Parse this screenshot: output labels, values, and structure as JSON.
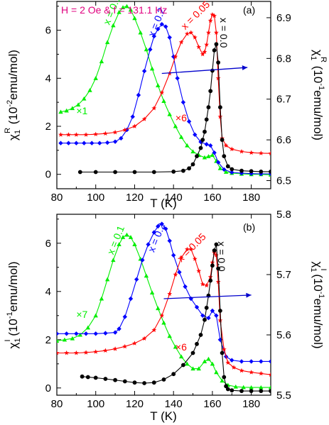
{
  "chart_data": [
    {
      "type": "scatter",
      "panel_label": "(a)",
      "annotation": "H = 2 Oe & f = 131.1 Hz",
      "xlabel": "T (K)",
      "xlim": [
        80,
        190
      ],
      "xticks": [
        "80",
        "100",
        "120",
        "140",
        "160",
        "180"
      ],
      "ylabel_left": "χ1R (10-2emu/mol)",
      "ylim_left": [
        -0.6,
        7.2
      ],
      "yticks_left": [
        "0",
        "2",
        "4",
        "6"
      ],
      "ylabel_right": "χ1R (10-1emu/mol)",
      "ylim_right": [
        6.48,
        6.94
      ],
      "yticks_right": [
        "6.5",
        "6.6",
        "6.7",
        "6.8",
        "6.9"
      ],
      "multiplier_labels": [
        {
          "text": "×1",
          "color": "#00ee00",
          "x": 90,
          "y": 2.5
        },
        {
          "text": "×6",
          "color": "#ff0000",
          "x": 141,
          "y": 2.2
        }
      ],
      "right_axis_arrow": {
        "from": [
          134,
          4.2
        ],
        "to": [
          178,
          4.45
        ],
        "color": "#0000cc"
      },
      "series": [
        {
          "name": "x = 0.1",
          "color": "#00ee00",
          "marker": "triangle",
          "axis": "left",
          "label_pos": [
            107,
            6.2
          ],
          "label_rotate": -68,
          "x": [
            82,
            85,
            88,
            91,
            94,
            97,
            100,
            103,
            106,
            109,
            112,
            114,
            116,
            118,
            120,
            123,
            126,
            129,
            132,
            135,
            138,
            141,
            144,
            147,
            150,
            153,
            156,
            158,
            160,
            162,
            164,
            167,
            170,
            175,
            180,
            185,
            190
          ],
          "y": [
            2.6,
            2.65,
            2.75,
            2.9,
            3.15,
            3.5,
            4.0,
            4.7,
            5.5,
            6.2,
            6.75,
            6.95,
            7.0,
            6.85,
            6.5,
            5.9,
            5.2,
            4.4,
            3.7,
            3.05,
            2.5,
            2.0,
            1.55,
            1.2,
            0.95,
            0.8,
            0.7,
            0.75,
            0.8,
            0.55,
            0.25,
            0.1,
            0.05,
            0.02,
            0.0,
            0.0,
            -0.02
          ]
        },
        {
          "name": "x = 0.2",
          "color": "#0000ff",
          "marker": "diamond",
          "axis": "left",
          "label_pos": [
            130,
            5.7
          ],
          "label_rotate": -68,
          "x": [
            82,
            86,
            90,
            94,
            98,
            102,
            106,
            110,
            113,
            116,
            119,
            122,
            125,
            128,
            130,
            132,
            134,
            136,
            138,
            140,
            142,
            145,
            148,
            151,
            154,
            157,
            159,
            161,
            163,
            166,
            170,
            175,
            180,
            185,
            190
          ],
          "y": [
            1.3,
            1.3,
            1.3,
            1.3,
            1.3,
            1.3,
            1.32,
            1.36,
            1.5,
            1.85,
            2.4,
            3.3,
            4.3,
            5.2,
            5.75,
            6.05,
            6.25,
            6.15,
            5.7,
            4.9,
            4.0,
            3.0,
            2.2,
            1.65,
            1.35,
            1.25,
            1.2,
            0.9,
            0.5,
            0.2,
            0.08,
            0.05,
            0.03,
            0.02,
            0.02
          ]
        },
        {
          "name": "x = 0.05",
          "color": "#ff0000",
          "marker": "star",
          "axis": "left",
          "label_pos": [
            146,
            6.0
          ],
          "label_rotate": -45,
          "x": [
            82,
            86,
            90,
            95,
            100,
            105,
            110,
            115,
            120,
            125,
            130,
            134,
            138,
            141,
            144,
            147,
            149,
            151,
            153,
            155,
            156,
            157,
            158,
            159,
            160,
            161,
            162,
            163,
            164,
            165,
            167,
            170,
            175,
            180,
            185,
            190
          ],
          "y": [
            1.65,
            1.65,
            1.65,
            1.65,
            1.67,
            1.7,
            1.75,
            1.85,
            2.0,
            2.3,
            2.75,
            3.4,
            4.2,
            4.9,
            5.5,
            5.85,
            5.9,
            5.7,
            5.3,
            5.0,
            5.1,
            5.4,
            5.9,
            6.4,
            6.65,
            6.6,
            5.9,
            4.0,
            2.4,
            1.5,
            1.2,
            1.05,
            0.95,
            0.9,
            0.88,
            0.87
          ]
        },
        {
          "name": "x = 0.0",
          "color": "#000000",
          "marker": "circle",
          "axis": "right",
          "label_pos": [
            164,
            6.9
          ],
          "label_rotate": 90,
          "x": [
            92,
            100,
            110,
            120,
            130,
            140,
            145,
            148,
            150,
            152,
            154,
            155,
            156,
            157,
            158,
            159,
            160,
            161,
            162,
            163,
            164,
            165,
            166,
            168,
            170,
            175,
            180,
            185,
            190
          ],
          "y": [
            6.521,
            6.521,
            6.521,
            6.521,
            6.521,
            6.522,
            6.524,
            6.53,
            6.54,
            6.56,
            6.58,
            6.6,
            6.62,
            6.65,
            6.68,
            6.72,
            6.77,
            6.82,
            6.835,
            6.79,
            6.68,
            6.6,
            6.56,
            6.535,
            6.528,
            6.524,
            6.523,
            6.522,
            6.522
          ]
        }
      ]
    },
    {
      "type": "scatter",
      "panel_label": "(b)",
      "xlabel": "T (K)",
      "xlim": [
        80,
        190
      ],
      "xticks": [
        "80",
        "100",
        "120",
        "140",
        "160",
        "180"
      ],
      "ylabel_left": "χ1I (10-1emu/mol)",
      "ylim_left": [
        -0.3,
        7.2
      ],
      "yticks_left": [
        "0",
        "2",
        "4",
        "6"
      ],
      "ylabel_right": "χ1I (10-1emu/mol)",
      "ylim_right": [
        5.5,
        5.8
      ],
      "yticks_right": [
        "5.5",
        "5.6",
        "5.7",
        "5.8"
      ],
      "multiplier_labels": [
        {
          "text": "×7",
          "color": "#00ee00",
          "x": 90,
          "y": 2.9
        },
        {
          "text": "×6",
          "color": "#ff0000",
          "x": 141,
          "y": 1.55
        }
      ],
      "right_axis_arrow": {
        "from": [
          135,
          3.7
        ],
        "to": [
          180,
          3.85
        ],
        "color": "#0000cc"
      },
      "series": [
        {
          "name": "x = 0.1",
          "color": "#00ee00",
          "marker": "triangle",
          "axis": "left",
          "label_pos": [
            109,
            5.5
          ],
          "label_rotate": -68,
          "x": [
            80,
            84,
            88,
            92,
            96,
            100,
            103,
            106,
            109,
            112,
            114,
            116,
            118,
            120,
            123,
            126,
            129,
            132,
            135,
            138,
            141,
            144,
            147,
            150,
            153,
            156,
            158,
            160,
            162,
            165,
            168,
            172,
            176,
            180,
            185,
            190
          ],
          "y": [
            1.95,
            2.0,
            2.05,
            2.2,
            2.5,
            3.0,
            3.7,
            4.5,
            5.3,
            5.95,
            6.25,
            6.35,
            6.25,
            5.95,
            5.35,
            4.65,
            3.95,
            3.3,
            2.7,
            2.15,
            1.7,
            1.3,
            1.0,
            0.8,
            0.8,
            1.1,
            1.2,
            1.0,
            0.65,
            0.3,
            0.12,
            0.05,
            0.03,
            0.02,
            0.02,
            0.02
          ]
        },
        {
          "name": "x = 0.2",
          "color": "#0000ff",
          "marker": "diamond",
          "axis": "left",
          "label_pos": [
            130,
            5.6
          ],
          "label_rotate": -68,
          "x": [
            80,
            85,
            90,
            95,
            100,
            105,
            110,
            112,
            115,
            118,
            121,
            124,
            127,
            130,
            132,
            134,
            136,
            138,
            140,
            143,
            146,
            149,
            152,
            155,
            158,
            160,
            162,
            164,
            167,
            170,
            175,
            180,
            185,
            190
          ],
          "y": [
            2.25,
            2.25,
            2.25,
            2.25,
            2.25,
            2.27,
            2.3,
            2.45,
            2.95,
            3.7,
            4.5,
            5.3,
            5.95,
            6.45,
            6.7,
            6.8,
            6.6,
            6.1,
            5.5,
            4.8,
            4.2,
            3.7,
            3.35,
            3.0,
            2.9,
            3.2,
            3.0,
            2.0,
            1.3,
            1.15,
            1.1,
            1.1,
            1.1,
            1.1
          ]
        },
        {
          "name": "x = 0.05",
          "color": "#ff0000",
          "marker": "star",
          "axis": "left",
          "label_pos": [
            144,
            5.2
          ],
          "label_rotate": -45,
          "x": [
            80,
            85,
            90,
            95,
            100,
            105,
            110,
            115,
            120,
            125,
            130,
            134,
            138,
            141,
            144,
            147,
            149,
            151,
            153,
            155,
            157,
            159,
            160,
            161,
            162,
            163,
            164,
            166,
            168,
            171,
            175,
            180,
            185,
            190
          ],
          "y": [
            1.45,
            1.45,
            1.45,
            1.47,
            1.5,
            1.55,
            1.62,
            1.72,
            1.85,
            2.05,
            2.4,
            3.0,
            3.9,
            4.7,
            5.4,
            5.75,
            5.75,
            5.35,
            4.85,
            4.3,
            4.25,
            4.6,
            5.2,
            5.6,
            5.5,
            4.4,
            2.8,
            1.6,
            1.05,
            0.85,
            0.72,
            0.65,
            0.6,
            0.55
          ]
        },
        {
          "name": "x = 0.0",
          "color": "#000000",
          "marker": "circle",
          "axis": "right",
          "label_pos": [
            163,
            5.755
          ],
          "label_rotate": 90,
          "x": [
            93,
            96,
            100,
            105,
            110,
            115,
            120,
            125,
            130,
            135,
            140,
            145,
            150,
            152,
            154,
            156,
            157,
            158,
            159,
            160,
            161,
            162,
            163,
            164,
            165,
            166,
            167,
            168,
            170,
            175,
            180,
            185,
            190
          ],
          "y": [
            5.531,
            5.53,
            5.529,
            5.527,
            5.525,
            5.523,
            5.521,
            5.52,
            5.521,
            5.526,
            5.535,
            5.55,
            5.57,
            5.585,
            5.6,
            5.625,
            5.645,
            5.665,
            5.69,
            5.715,
            5.74,
            5.75,
            5.71,
            5.64,
            5.57,
            5.53,
            5.515,
            5.51,
            5.508,
            5.507,
            5.507,
            5.507,
            5.507
          ]
        }
      ]
    }
  ]
}
